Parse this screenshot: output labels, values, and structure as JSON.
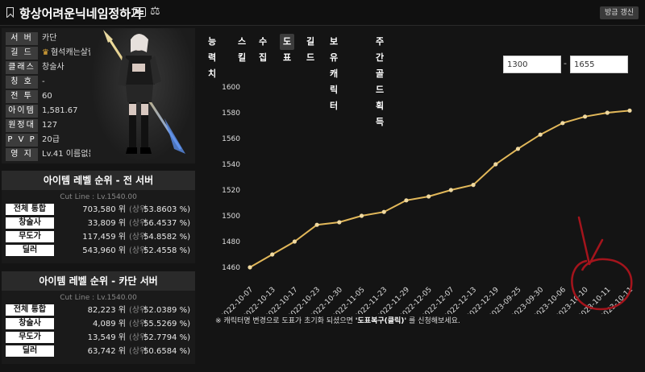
{
  "header": {
    "title": "항상어려운닉네임정하기",
    "refresh_label": "방금 갱신"
  },
  "profile": {
    "rows": [
      {
        "label": "서 버",
        "value": "카단"
      },
      {
        "label": "길 드",
        "value": "혐석캐는살람들",
        "icon": "crown-icon"
      },
      {
        "label": "클래스",
        "value": "창술사"
      },
      {
        "label": "칭 호",
        "value": "-"
      },
      {
        "label": "전 투",
        "value": "60"
      },
      {
        "label": "아이템",
        "value": "1,581.67"
      },
      {
        "label": "원정대",
        "value": "127"
      },
      {
        "label": "P V P",
        "value": "20급"
      },
      {
        "label": "영 지",
        "value": "Lv.41 이름없는영지"
      }
    ]
  },
  "rank_all": {
    "title": "아이템 레벨 순위 - 전 서버",
    "cutline": "Cut Line : Lv.1540.00",
    "rows": [
      {
        "label": "전체 통합",
        "rank": "703,580 위",
        "upper": "(상위",
        "pct": "53.8603 %)"
      },
      {
        "label": "창술사",
        "rank": "33,809 위",
        "upper": "(상위",
        "pct": "56.4537 %)"
      },
      {
        "label": "무도가",
        "rank": "117,459 위",
        "upper": "(상위",
        "pct": "54.8582 %)"
      },
      {
        "label": "딜러",
        "rank": "543,960 위",
        "upper": "(상위",
        "pct": "52.4558 %)"
      }
    ]
  },
  "rank_server": {
    "title": "아이템 레벨 순위 - 카단 서버",
    "cutline": "Cut Line : Lv.1540.00",
    "rows": [
      {
        "label": "전체 통합",
        "rank": "82,223 위",
        "upper": "(상위",
        "pct": "52.0389 %)"
      },
      {
        "label": "창술사",
        "rank": "4,089 위",
        "upper": "(상위",
        "pct": "55.5269 %)"
      },
      {
        "label": "무도가",
        "rank": "13,549 위",
        "upper": "(상위",
        "pct": "52.7794 %)"
      },
      {
        "label": "딜러",
        "rank": "63,742 위",
        "upper": "(상위",
        "pct": "50.6584 %)"
      }
    ]
  },
  "tabs": [
    "능력치",
    "스킬",
    "수집",
    "도표",
    "길드",
    "보유 캐릭터",
    "주간골드획득"
  ],
  "active_tab": "도표",
  "range": {
    "min": "1300",
    "max": "1655",
    "dash": "-"
  },
  "note": {
    "prefix": "※ 캐릭터명 변경으로 도표가 초기화 되셨으면 ",
    "emphasis": "'도표복구(클릭)'",
    "suffix": " 를 신청해보세요."
  },
  "colors": {
    "line": "#e2b85a",
    "point": "#f0d9a0",
    "annotation": "#a4141c"
  },
  "chart_data": {
    "type": "line",
    "ylim": [
      1450,
      1610
    ],
    "yticks": [
      1460,
      1480,
      1500,
      1520,
      1540,
      1560,
      1580,
      1600
    ],
    "grid": false,
    "categories": [
      "2022-10-07",
      "2022-10-13",
      "2022-10-17",
      "2022-10-23",
      "2022-10-30",
      "2022-11-05",
      "2022-11-23",
      "2022-11-29",
      "2022-12-05",
      "2022-12-07",
      "2022-12-13",
      "2022-12-19",
      "2023-09-25",
      "2023-09-30",
      "2023-10-06",
      "2023-10-10",
      "2023-10-11",
      "2023-10-11"
    ],
    "values": [
      1460,
      1470,
      1480,
      1493,
      1495,
      1500,
      1503,
      1512,
      1515,
      1520,
      1524,
      1540,
      1552,
      1563,
      1572,
      1577,
      1580,
      1581.67
    ]
  }
}
